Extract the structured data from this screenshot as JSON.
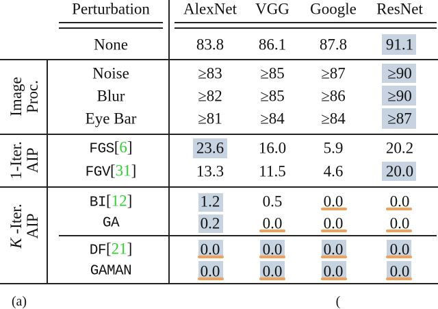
{
  "headers": {
    "perturbation": "Perturbation",
    "alexnet": "AlexNet",
    "vgg": "VGG",
    "google": "Google",
    "resnet": "ResNet"
  },
  "groups": {
    "image_proc": {
      "line1": "Image",
      "line2": "Proc."
    },
    "one_iter": {
      "line1": "1-Iter.",
      "line2": "AIP"
    },
    "k_iter": {
      "k": "K",
      "line1_rest": " -Iter.",
      "line2": "AIP"
    }
  },
  "rows": {
    "none": {
      "label": "None",
      "alexnet": "83.8",
      "vgg": "86.1",
      "google": "87.8",
      "resnet": "91.1"
    },
    "noise": {
      "label": "Noise",
      "alexnet": "≥83",
      "vgg": "≥85",
      "google": "≥87",
      "resnet": "≥90"
    },
    "blur": {
      "label": "Blur",
      "alexnet": "≥82",
      "vgg": "≥85",
      "google": "≥86",
      "resnet": "≥90"
    },
    "eyebar": {
      "label": "Eye Bar",
      "alexnet": "≥81",
      "vgg": "≥84",
      "google": "≥84",
      "resnet": "≥87"
    },
    "fgs": {
      "label": "FGS",
      "cite": "6",
      "alexnet": "23.6",
      "vgg": "16.0",
      "google": "5.9",
      "resnet": "20.2"
    },
    "fgv": {
      "label": "FGV",
      "cite": "31",
      "alexnet": "13.3",
      "vgg": "11.5",
      "google": "4.6",
      "resnet": "20.0"
    },
    "bi": {
      "label": "BI",
      "cite": "12",
      "alexnet": "1.2",
      "vgg": "0.5",
      "google": "0.0",
      "resnet": "0.0"
    },
    "ga": {
      "label": "GA",
      "alexnet": "0.2",
      "vgg": "0.0",
      "google": "0.0",
      "resnet": "0.0"
    },
    "df": {
      "label": "DF",
      "cite": "21",
      "alexnet": "0.0",
      "vgg": "0.0",
      "google": "0.0",
      "resnet": "0.0"
    },
    "gaman": {
      "label": "GAMAN",
      "alexnet": "0.0",
      "vgg": "0.0",
      "google": "0.0",
      "resnet": "0.0"
    }
  },
  "colors": {
    "highlight_best": "#c7d3e0",
    "underline_zero": "#f0a15a",
    "citation": "#2fd12f"
  },
  "footer": {
    "left": "(a)",
    "right": "("
  }
}
